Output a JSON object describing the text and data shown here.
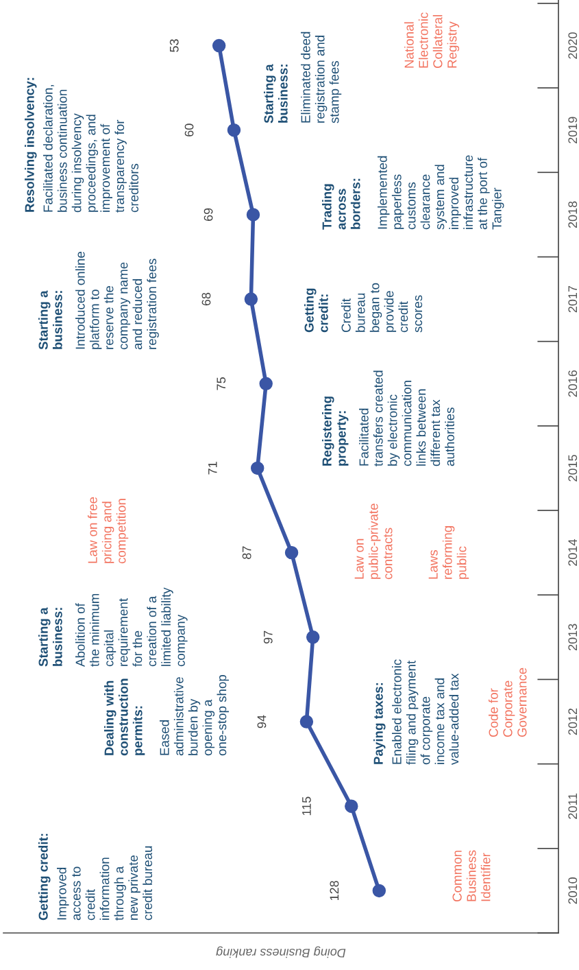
{
  "chart_data": {
    "type": "line",
    "orientation": "horizontal",
    "categories": [
      "2020",
      "2019",
      "2018",
      "2017",
      "2016",
      "2015",
      "2014",
      "2013",
      "2012",
      "2011",
      "2010"
    ],
    "series": [
      {
        "color": "#3a56a5",
        "values": [
          53,
          60,
          69,
          68,
          75,
          71,
          87,
          97,
          94,
          115,
          128
        ]
      }
    ],
    "xlim": [
      -48,
      212
    ],
    "xlabel": "Doing Business ranking",
    "data_labels": true,
    "marker": "circle",
    "line_style": "solid",
    "grid": false,
    "annotations": [
      "Getting credit:\nImproved\naccess to\ncredit\ninformation\nthrough a\nnew private\ncredit bureau",
      "Dealing with\nconstruction\npermits:\nEased\nadministrative\nburden by\nopening a\none-stop shop",
      "Starting a\nbusiness:\nAbolition of\nthe minimum\ncapital\nrequirement\nfor the\ncreation of a\nlimited liability\ncompany",
      "Law on free\npricing and\ncompetition",
      "Starting a\nbusiness:\nIntroduced online\nplatform to\nreserve the\ncompany name\nand reduced\nregistration fees",
      "Resolving insolvency:\nFacilitated declaration,\nbusiness continuation\nduring insolvency\nproceedings, and\nimprovement of\ntransparency for\ncreditors",
      "Common\nBusiness\nIdentifier",
      "Paying taxes:\nEnabled electronic\nfiling and payment\nof corporate\nincome tax and\nvalue-added tax",
      "Code for\nCorporate\nGovernance",
      "Law on\npublic-private\ncontracts",
      "Laws\nreforming\npublic",
      "Registering\nproperty:\nFacilitated\ntransfers created\nby electronic\ncommunication\nlinks between\ndifferent tax\nauthorities",
      "Getting\ncredit:\nCredit\nbureau\nbegan to\nprovide\ncredit\nscores",
      "Trading\nacross\nborders:\nImplemented\npaperless\ncustoms\nclearance\nsystem and\nimproved\ninfrastructure\nat the port of\nTangier",
      "Starting a\nbusiness:\nEliminated deed\nregistration and\nstamp fees",
      "National\nElectronic\nCollateral\nRegistry"
    ]
  }
}
